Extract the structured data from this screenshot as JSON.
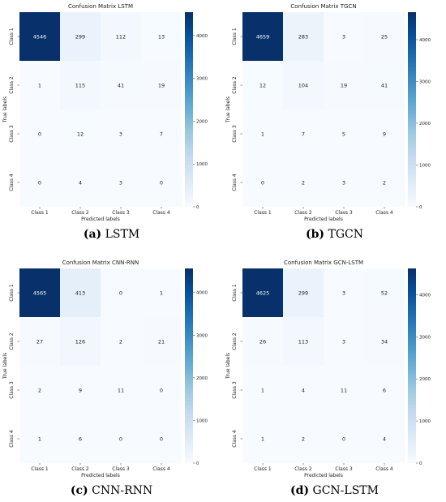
{
  "chart_data": [
    {
      "type": "heatmap",
      "title": "Confusion Matrix LSTM",
      "caption_letter": "(a)",
      "caption_name": "LSTM",
      "xlabel": "Predicted labels",
      "ylabel": "True labels",
      "x_categories": [
        "Class 1",
        "Class 2",
        "Class 3",
        "Class 4"
      ],
      "y_categories": [
        "Class 1",
        "Class 2",
        "Class 3",
        "Class 4"
      ],
      "values": [
        [
          4546,
          299,
          112,
          13
        ],
        [
          1,
          115,
          41,
          19
        ],
        [
          0,
          12,
          3,
          7
        ],
        [
          0,
          4,
          3,
          0
        ]
      ],
      "colorbar_ticks": [
        "0",
        "1000",
        "2000",
        "3000",
        "4000"
      ],
      "colorbar_range": [
        0,
        4546
      ]
    },
    {
      "type": "heatmap",
      "title": "Confusion Matrix TGCN",
      "caption_letter": "(b)",
      "caption_name": "TGCN",
      "xlabel": "Predicted labels",
      "ylabel": "True labels",
      "x_categories": [
        "Class 1",
        "Class 2",
        "Class 3",
        "Class 4"
      ],
      "y_categories": [
        "Class 1",
        "Class 2",
        "Class 3",
        "Class 4"
      ],
      "values": [
        [
          4659,
          283,
          3,
          25
        ],
        [
          12,
          104,
          19,
          41
        ],
        [
          1,
          7,
          5,
          9
        ],
        [
          0,
          2,
          3,
          2
        ]
      ],
      "colorbar_ticks": [
        "0",
        "1000",
        "2000",
        "3000",
        "4000"
      ],
      "colorbar_range": [
        0,
        4659
      ]
    },
    {
      "type": "heatmap",
      "title": "Confusion Matrix CNN-RNN",
      "caption_letter": "(c)",
      "caption_name": "CNN-RNN",
      "xlabel": "Predicted labels",
      "ylabel": "True labels",
      "x_categories": [
        "Class 1",
        "Class 2",
        "Class 3",
        "Class 4"
      ],
      "y_categories": [
        "Class 1",
        "Class 2",
        "Class 3",
        "Class 4"
      ],
      "values": [
        [
          4565,
          413,
          0,
          1
        ],
        [
          27,
          126,
          2,
          21
        ],
        [
          2,
          9,
          11,
          0
        ],
        [
          1,
          6,
          0,
          0
        ]
      ],
      "colorbar_ticks": [
        "0",
        "1000",
        "2000",
        "3000",
        "4000"
      ],
      "colorbar_range": [
        0,
        4565
      ]
    },
    {
      "type": "heatmap",
      "title": "Confusion Matrix GCN-LSTM",
      "caption_letter": "(d)",
      "caption_name": "GCN-LSTM",
      "xlabel": "Predicted labels",
      "ylabel": "True labels",
      "x_categories": [
        "Class 1",
        "Class 2",
        "Class 3",
        "Class 4"
      ],
      "y_categories": [
        "Class 1",
        "Class 2",
        "Class 3",
        "Class 4"
      ],
      "values": [
        [
          4625,
          299,
          3,
          52
        ],
        [
          26,
          113,
          3,
          34
        ],
        [
          1,
          4,
          11,
          6
        ],
        [
          1,
          2,
          0,
          4
        ]
      ],
      "colorbar_ticks": [
        "0",
        "1000",
        "2000",
        "3000",
        "4000"
      ],
      "colorbar_range": [
        0,
        4625
      ]
    }
  ]
}
